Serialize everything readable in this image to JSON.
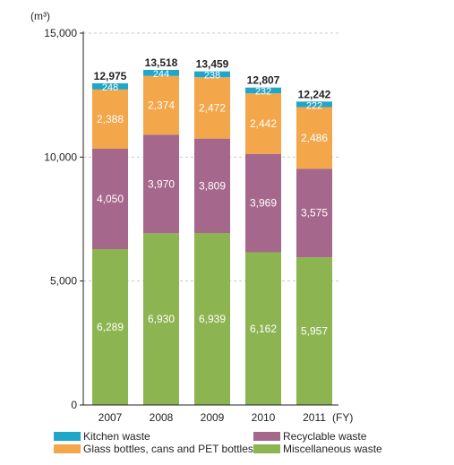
{
  "chart_data": {
    "type": "bar",
    "stacked": true,
    "ylabel": "(m³)",
    "xunit": "(FY)",
    "ylim": [
      0,
      15000
    ],
    "yticks": [
      "0",
      "5,000",
      "10,000",
      "15,000"
    ],
    "ytick_values": [
      0,
      5000,
      10000,
      15000
    ],
    "grid": "horizontal dashed",
    "categories": [
      "2007",
      "2008",
      "2009",
      "2010",
      "2011"
    ],
    "series": [
      {
        "name": "Miscellaneous waste",
        "color": "#8cb450",
        "values": [
          6289,
          6930,
          6939,
          6162,
          5957
        ],
        "labels": [
          "6,289",
          "6,930",
          "6,939",
          "6,162",
          "5,957"
        ]
      },
      {
        "name": "Recyclable waste",
        "color": "#a5678b",
        "values": [
          4050,
          3970,
          3809,
          3969,
          3575
        ],
        "labels": [
          "4,050",
          "3,970",
          "3,809",
          "3,969",
          "3,575"
        ]
      },
      {
        "name": "Glass bottles, cans and PET bottles",
        "color": "#f3a64a",
        "values": [
          2388,
          2374,
          2472,
          2442,
          2486
        ],
        "labels": [
          "2,388",
          "2,374",
          "2,472",
          "2,442",
          "2,486"
        ]
      },
      {
        "name": "Kitchen waste",
        "color": "#1fa6c8",
        "values": [
          248,
          244,
          238,
          232,
          222
        ],
        "labels": [
          "248",
          "244",
          "238",
          "232",
          "222"
        ]
      }
    ],
    "totals": [
      12975,
      13518,
      13459,
      12807,
      12242
    ],
    "total_labels": [
      "12,975",
      "13,518",
      "13,459",
      "12,807",
      "12,242"
    ],
    "legend": [
      {
        "name": "Kitchen waste",
        "color": "#1fa6c8"
      },
      {
        "name": "Recyclable waste",
        "color": "#a5678b"
      },
      {
        "name": "Glass bottles, cans and PET bottles",
        "color": "#f3a64a"
      },
      {
        "name": "Miscellaneous waste",
        "color": "#8cb450"
      }
    ]
  }
}
